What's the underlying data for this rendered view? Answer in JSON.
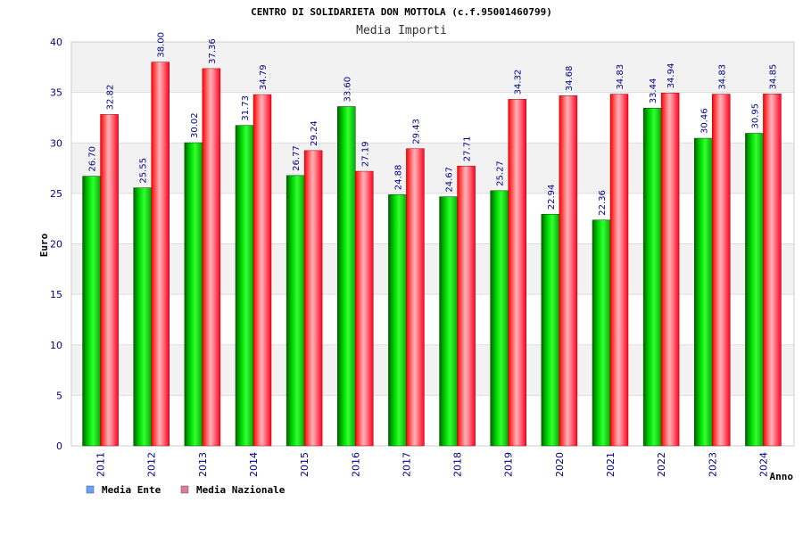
{
  "chart_data": {
    "type": "bar",
    "title": "CENTRO DI SOLIDARIETA DON MOTTOLA (c.f.95001460799)",
    "subtitle": "Media Importi",
    "xlabel": "Anno",
    "ylabel": "Euro",
    "ylim": [
      0,
      40
    ],
    "yticks": [
      0,
      5,
      10,
      15,
      20,
      25,
      30,
      35,
      40
    ],
    "grid": true,
    "legend_position": "bottom-left",
    "categories": [
      "2011",
      "2012",
      "2013",
      "2014",
      "2015",
      "2016",
      "2017",
      "2018",
      "2019",
      "2020",
      "2021",
      "2022",
      "2023",
      "2024"
    ],
    "series": [
      {
        "name": "Media Ente",
        "color": "#00cc00",
        "legend_color": "#66a3ff",
        "values": [
          26.7,
          25.55,
          30.02,
          31.73,
          26.77,
          33.6,
          24.88,
          24.67,
          25.27,
          22.94,
          22.36,
          33.44,
          30.46,
          30.95
        ],
        "labels": [
          "26.70",
          "25.55",
          "30.02",
          "31.73",
          "26.77",
          "33.60",
          "24.88",
          "24.67",
          "25.27",
          "22.94",
          "22.36",
          "33.44",
          "30.46",
          "30.95"
        ]
      },
      {
        "name": "Media Nazionale",
        "color": "#ff1a33",
        "legend_color": "#e07aa0",
        "values": [
          32.82,
          38.0,
          37.36,
          34.79,
          29.24,
          27.19,
          29.43,
          27.71,
          34.32,
          34.68,
          34.83,
          34.94,
          34.83,
          34.85
        ],
        "labels": [
          "32.82",
          "38.00",
          "37.36",
          "34.79",
          "29.24",
          "27.19",
          "29.43",
          "27.71",
          "34.32",
          "34.68",
          "34.83",
          "34.94",
          "34.83",
          "34.85"
        ]
      }
    ]
  }
}
